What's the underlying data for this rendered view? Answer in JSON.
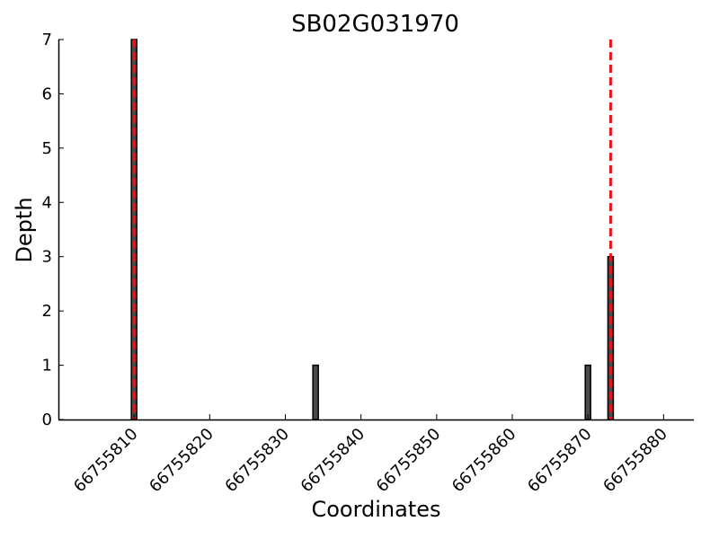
{
  "chart_data": {
    "type": "bar",
    "title": "SB02G031970",
    "xlabel": "Coordinates",
    "ylabel": "Depth",
    "xlim": [
      66755800,
      66755884
    ],
    "ylim": [
      0,
      7
    ],
    "x_ticks": [
      66755810,
      66755820,
      66755830,
      66755840,
      66755850,
      66755860,
      66755870,
      66755880
    ],
    "y_ticks": [
      0,
      1,
      2,
      3,
      4,
      5,
      6,
      7
    ],
    "bars": [
      {
        "x": 66755810,
        "depth": 7
      },
      {
        "x": 66755834,
        "depth": 1
      },
      {
        "x": 66755870,
        "depth": 1
      },
      {
        "x": 66755873,
        "depth": 3
      }
    ],
    "reference_lines": [
      66755810,
      66755873
    ],
    "grid": false,
    "colors": {
      "bar_fill": "#4a4a4a",
      "bar_edge": "#000000",
      "reference_line": "#e8141b"
    }
  }
}
